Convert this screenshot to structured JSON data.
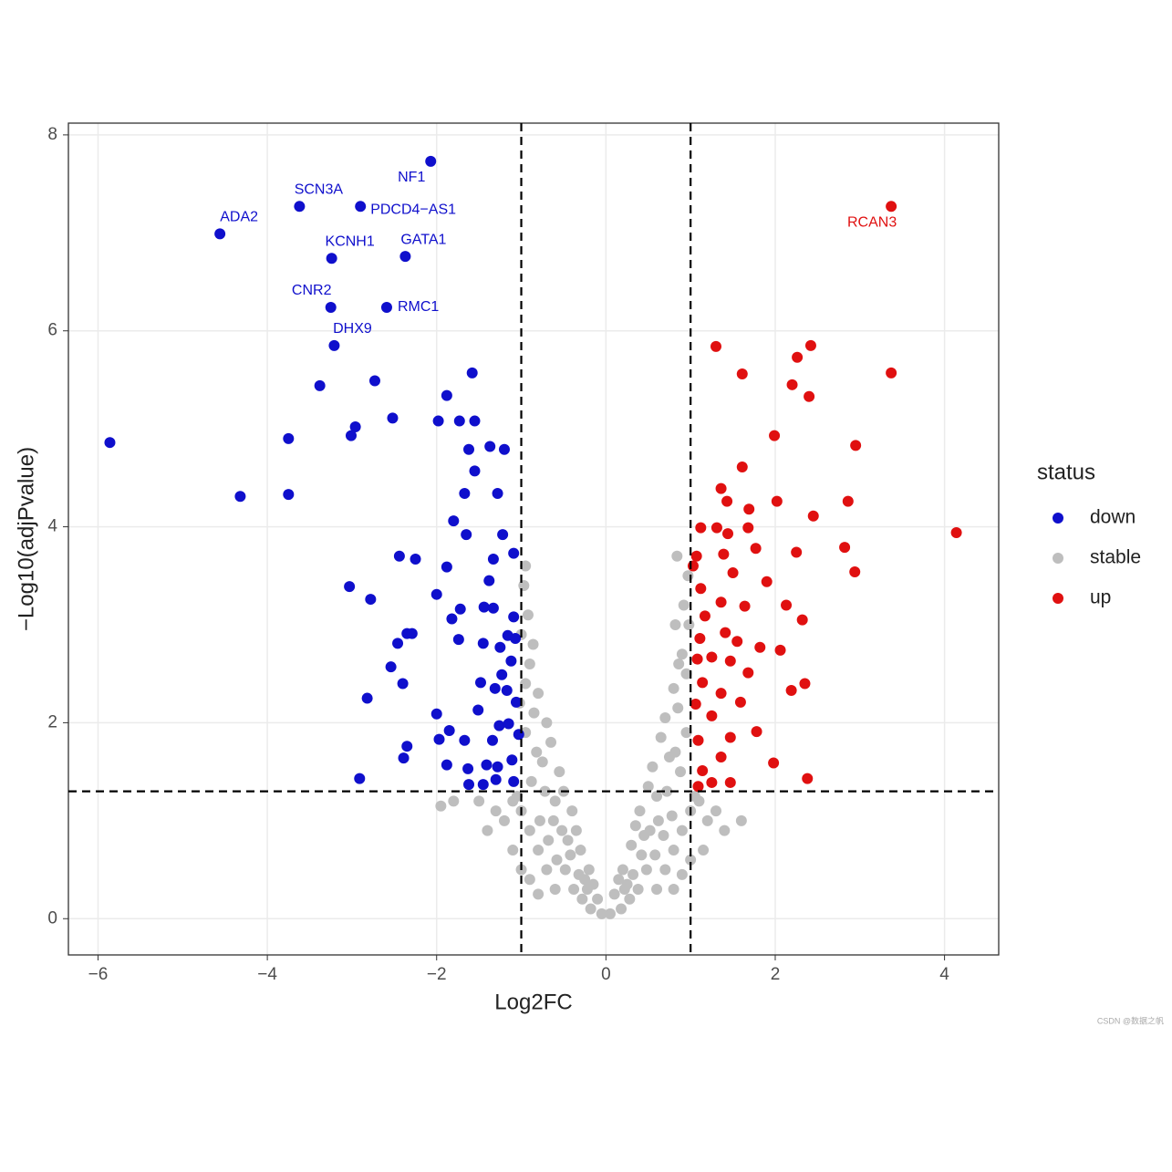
{
  "chart_data": {
    "type": "scatter",
    "xlabel": "Log2FC",
    "ylabel": "−Log10(adjPvalue)",
    "legend_title": "status",
    "legend": "right",
    "grid": true,
    "watermark": "CSDN @数据之帆",
    "xlim": [
      -6.35,
      4.64
    ],
    "ylim": [
      -0.37,
      8.12
    ],
    "xticks": [
      {
        "value": -6,
        "label": "−6"
      },
      {
        "value": -4,
        "label": "−4"
      },
      {
        "value": -2,
        "label": "−2"
      },
      0,
      2,
      4
    ],
    "yticks": [
      0,
      2,
      4,
      6,
      8
    ],
    "vlines": [
      -1,
      1
    ],
    "hline": 1.3,
    "series": [
      {
        "name": "down",
        "color": "#0f0fcc",
        "x": [
          -2.07,
          -3.62,
          -2.9,
          -4.56,
          -3.24,
          -2.37,
          -3.25,
          -2.59,
          -3.21,
          -5.86,
          -4.32,
          -3.75,
          -3.75,
          -3.38,
          -2.96,
          -3.01,
          -2.73,
          -2.52,
          -1.88,
          -1.58,
          -1.98,
          -1.73,
          -1.55,
          -1.62,
          -1.37,
          -1.2,
          -1.55,
          -1.67,
          -1.28,
          -1.8,
          -1.65,
          -1.22,
          -2.44,
          -2.25,
          -1.88,
          -1.33,
          -1.09,
          -1.38,
          -3.03,
          -2.0,
          -2.78,
          -1.72,
          -1.44,
          -1.33,
          -1.09,
          -1.82,
          -2.35,
          -2.29,
          -2.46,
          -1.74,
          -1.45,
          -1.25,
          -1.16,
          -1.07,
          -2.54,
          -2.4,
          -1.48,
          -1.23,
          -1.12,
          -2.82,
          -1.31,
          -1.17,
          -2.0,
          -1.51,
          -1.06,
          -1.85,
          -1.97,
          -1.26,
          -1.15,
          -1.03,
          -1.67,
          -1.34,
          -2.35,
          -2.39,
          -1.88,
          -1.63,
          -1.41,
          -1.28,
          -1.11,
          -2.91,
          -1.62,
          -1.45,
          -1.3,
          -1.09
        ],
        "values": [
          7.73,
          7.27,
          7.27,
          6.99,
          6.74,
          6.76,
          6.24,
          6.24,
          5.85,
          4.86,
          4.31,
          4.9,
          4.33,
          5.44,
          5.02,
          4.93,
          5.49,
          5.11,
          5.34,
          5.57,
          5.08,
          5.08,
          5.08,
          4.79,
          4.82,
          4.79,
          4.57,
          4.34,
          4.34,
          4.06,
          3.92,
          3.92,
          3.7,
          3.67,
          3.59,
          3.67,
          3.73,
          3.45,
          3.39,
          3.31,
          3.26,
          3.16,
          3.18,
          3.17,
          3.08,
          3.06,
          2.91,
          2.91,
          2.81,
          2.85,
          2.81,
          2.77,
          2.89,
          2.86,
          2.57,
          2.4,
          2.41,
          2.49,
          2.63,
          2.25,
          2.35,
          2.33,
          2.09,
          2.13,
          2.21,
          1.92,
          1.83,
          1.97,
          1.99,
          1.88,
          1.82,
          1.82,
          1.76,
          1.64,
          1.57,
          1.53,
          1.57,
          1.55,
          1.62,
          1.43,
          1.37,
          1.37,
          1.42,
          1.4
        ],
        "labels": [
          "NF1",
          "SCN3A",
          "PDCD4−AS1",
          "ADA2",
          "KCNH1",
          "GATA1",
          "CNR2",
          "RMC1",
          "DHX9",
          null,
          null,
          null,
          null,
          null,
          null,
          null,
          null,
          null,
          null,
          null,
          null,
          null,
          null,
          null,
          null,
          null,
          null,
          null,
          null,
          null,
          null,
          null,
          null,
          null,
          null,
          null,
          null,
          null,
          null,
          null,
          null,
          null,
          null,
          null,
          null,
          null,
          null,
          null,
          null,
          null,
          null,
          null,
          null,
          null,
          null,
          null,
          null,
          null,
          null,
          null,
          null,
          null,
          null,
          null,
          null,
          null,
          null,
          null,
          null,
          null,
          null,
          null,
          null,
          null,
          null,
          null,
          null,
          null,
          null,
          null,
          null,
          null,
          null,
          null
        ]
      },
      {
        "name": "stable",
        "color": "#bebebe",
        "x": [
          -0.05,
          -0.1,
          -0.15,
          -0.2,
          -0.25,
          -0.3,
          -0.35,
          -0.4,
          -0.45,
          -0.5,
          -0.55,
          -0.6,
          -0.65,
          -0.7,
          -0.75,
          -0.8,
          -0.85,
          -0.9,
          -0.95,
          -1.0,
          -0.92,
          -0.97,
          -0.88,
          -0.78,
          -0.68,
          -0.58,
          -0.48,
          -0.38,
          -0.28,
          -0.18,
          -0.6,
          -0.7,
          -0.8,
          -0.9,
          -1.0,
          -1.1,
          -1.2,
          -1.3,
          -1.4,
          -1.5,
          -1.95,
          -1.8,
          -1.05,
          -0.95,
          -1.02,
          -0.86,
          -0.82,
          -0.72,
          -0.62,
          -0.52,
          -0.42,
          -0.32,
          -0.22,
          -1.1,
          -1.0,
          -0.9,
          -0.8,
          -0.95,
          0.05,
          0.1,
          0.15,
          0.2,
          0.25,
          0.3,
          0.35,
          0.4,
          0.45,
          0.5,
          0.55,
          0.6,
          0.65,
          0.7,
          0.75,
          0.8,
          0.85,
          0.9,
          0.95,
          0.98,
          0.92,
          0.97,
          0.82,
          0.88,
          0.78,
          0.68,
          0.58,
          0.48,
          0.38,
          0.28,
          0.18,
          0.6,
          0.7,
          0.8,
          0.9,
          1.0,
          1.1,
          1.2,
          1.3,
          1.4,
          1.6,
          1.15,
          1.05,
          0.95,
          0.86,
          0.82,
          0.72,
          0.62,
          0.52,
          0.42,
          0.32,
          0.22,
          1.0,
          0.9,
          0.8,
          0.84
        ],
        "values": [
          0.05,
          0.2,
          0.35,
          0.5,
          0.4,
          0.7,
          0.9,
          1.1,
          0.8,
          1.3,
          1.5,
          1.2,
          1.8,
          2.0,
          1.6,
          2.3,
          2.1,
          2.6,
          2.4,
          2.9,
          3.1,
          3.4,
          1.4,
          1.0,
          0.8,
          0.6,
          0.5,
          0.3,
          0.2,
          0.1,
          0.3,
          0.5,
          0.7,
          0.9,
          1.1,
          1.2,
          1.0,
          1.1,
          0.9,
          1.2,
          1.15,
          1.2,
          1.25,
          1.9,
          2.2,
          2.8,
          1.7,
          1.3,
          1.0,
          0.9,
          0.65,
          0.45,
          0.3,
          0.7,
          0.5,
          0.4,
          0.25,
          3.6,
          0.05,
          0.25,
          0.4,
          0.5,
          0.35,
          0.75,
          0.95,
          1.1,
          0.85,
          1.35,
          1.55,
          1.25,
          1.85,
          2.05,
          1.65,
          2.35,
          2.15,
          2.7,
          2.5,
          3.0,
          3.2,
          3.5,
          3.0,
          1.5,
          1.05,
          0.85,
          0.65,
          0.5,
          0.3,
          0.2,
          0.1,
          0.3,
          0.5,
          0.7,
          0.9,
          1.1,
          1.2,
          1.0,
          1.1,
          0.9,
          1.0,
          0.7,
          1.25,
          1.9,
          2.6,
          1.7,
          1.3,
          1.0,
          0.9,
          0.65,
          0.45,
          0.3,
          0.6,
          0.45,
          0.3,
          3.7
        ]
      },
      {
        "name": "up",
        "color": "#e01010",
        "x": [
          3.37,
          1.3,
          2.42,
          2.26,
          3.37,
          1.61,
          2.2,
          2.4,
          1.99,
          2.95,
          1.61,
          1.36,
          1.43,
          2.02,
          2.86,
          1.69,
          2.45,
          1.12,
          1.31,
          1.44,
          1.68,
          4.14,
          1.77,
          2.25,
          2.82,
          1.07,
          1.39,
          1.5,
          1.03,
          2.94,
          1.9,
          1.12,
          1.36,
          1.64,
          2.13,
          1.17,
          2.32,
          1.41,
          1.11,
          1.55,
          1.82,
          2.06,
          1.25,
          1.08,
          1.47,
          1.68,
          2.19,
          2.35,
          1.14,
          1.36,
          1.59,
          1.06,
          1.25,
          1.78,
          1.47,
          1.09,
          1.98,
          1.36,
          1.14,
          2.38,
          1.25,
          1.09,
          1.47
        ],
        "values": [
          7.27,
          5.84,
          5.85,
          5.73,
          5.57,
          5.56,
          5.45,
          5.33,
          4.93,
          4.83,
          4.61,
          4.39,
          4.26,
          4.26,
          4.26,
          4.18,
          4.11,
          3.99,
          3.99,
          3.93,
          3.99,
          3.94,
          3.78,
          3.74,
          3.79,
          3.7,
          3.72,
          3.53,
          3.6,
          3.54,
          3.44,
          3.37,
          3.23,
          3.19,
          3.2,
          3.09,
          3.05,
          2.92,
          2.86,
          2.83,
          2.77,
          2.74,
          2.67,
          2.65,
          2.63,
          2.51,
          2.33,
          2.4,
          2.41,
          2.3,
          2.21,
          2.19,
          2.07,
          1.91,
          1.85,
          1.82,
          1.59,
          1.65,
          1.51,
          1.43,
          1.39,
          1.35,
          1.39
        ],
        "labels": [
          "RCAN3",
          null,
          null,
          null,
          null,
          null,
          null,
          null,
          null,
          null,
          null,
          null,
          null,
          null,
          null,
          null,
          null,
          null,
          null,
          null,
          null,
          null,
          null,
          null,
          null,
          null,
          null,
          null,
          null,
          null,
          null,
          null,
          null,
          null,
          null,
          null,
          null,
          null,
          null,
          null,
          null,
          null,
          null,
          null,
          null,
          null,
          null,
          null,
          null,
          null,
          null,
          null,
          null,
          null,
          null,
          null,
          null,
          null,
          null,
          null,
          null,
          null,
          null
        ]
      }
    ]
  }
}
